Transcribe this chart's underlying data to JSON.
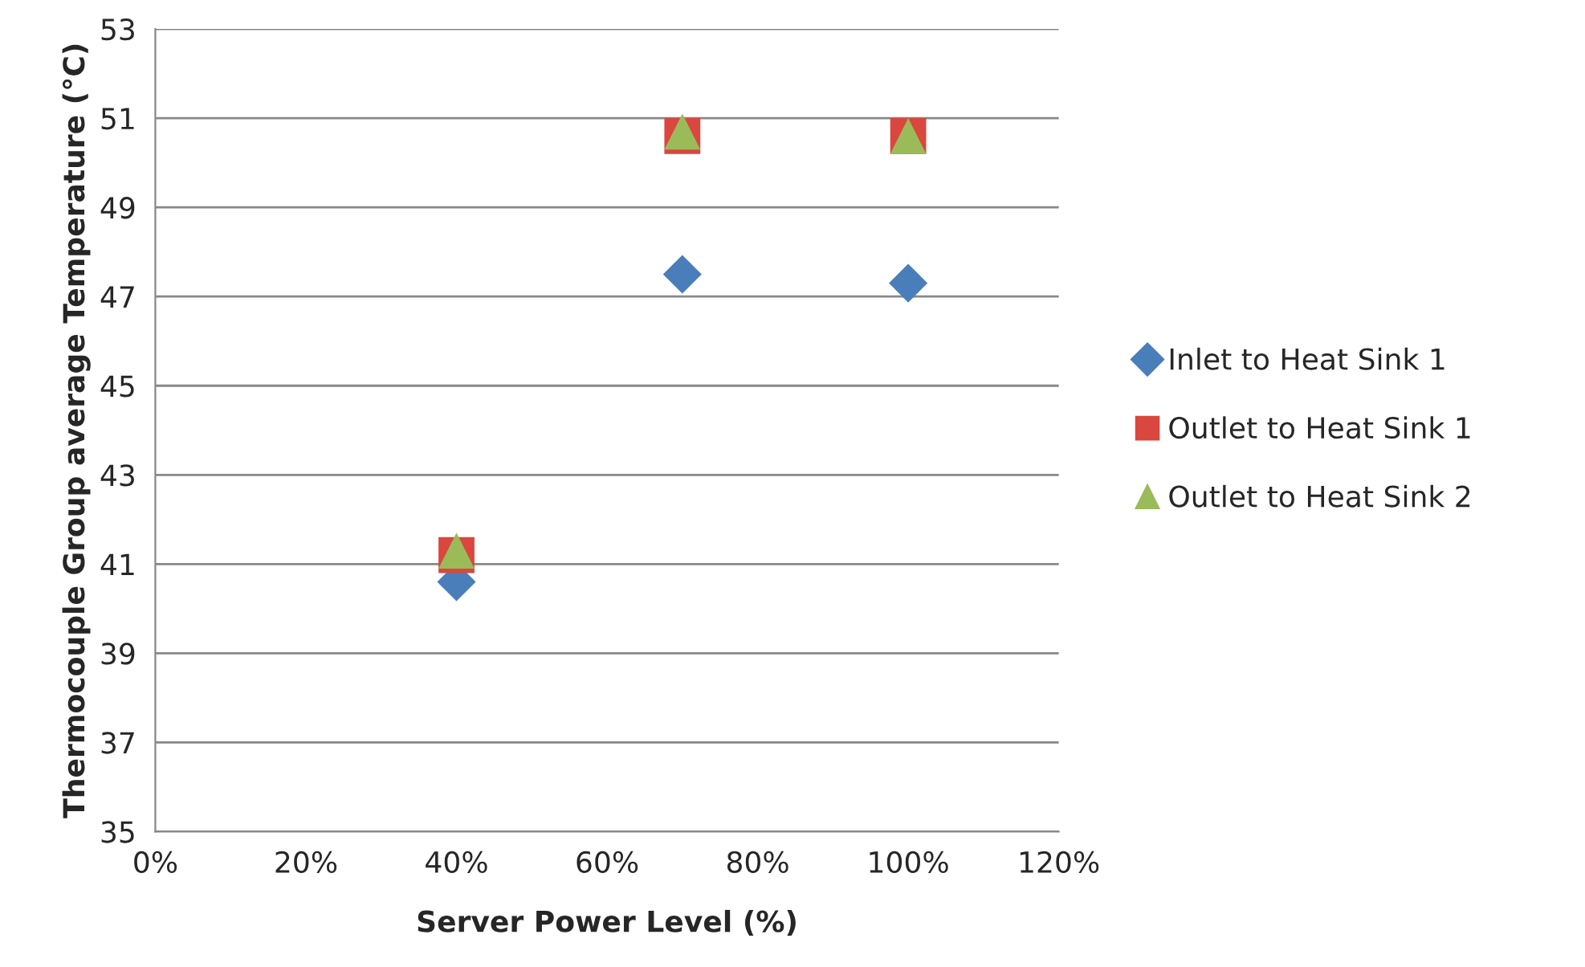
{
  "chart_data": {
    "type": "scatter",
    "xlabel": "Server Power Level (%)",
    "ylabel": "Thermocouple Group average Temperature (°C)",
    "x": [
      40,
      70,
      100
    ],
    "series": [
      {
        "name": "Inlet to Heat Sink 1",
        "color": "#4a7ebb",
        "marker": "diamond",
        "values": [
          40.6,
          47.5,
          47.3
        ]
      },
      {
        "name": "Outlet to Heat Sink 1",
        "color": "#d9473f",
        "marker": "square",
        "values": [
          41.2,
          50.6,
          50.6
        ]
      },
      {
        "name": "Outlet to Heat Sink 2",
        "color": "#9bbb59",
        "marker": "triangle",
        "values": [
          41.3,
          50.7,
          50.6
        ]
      }
    ],
    "xlim": [
      0,
      120
    ],
    "xticks": [
      {
        "value": 0,
        "label": "0%"
      },
      {
        "value": 20,
        "label": "20%"
      },
      {
        "value": 40,
        "label": "40%"
      },
      {
        "value": 60,
        "label": "60%"
      },
      {
        "value": 80,
        "label": "80%"
      },
      {
        "value": 100,
        "label": "100%"
      },
      {
        "value": 120,
        "label": "120%"
      }
    ],
    "ylim": [
      35,
      53
    ],
    "yticks": [
      35,
      37,
      39,
      41,
      43,
      45,
      47,
      49,
      51,
      53
    ],
    "grid": "y",
    "legend": "right"
  }
}
